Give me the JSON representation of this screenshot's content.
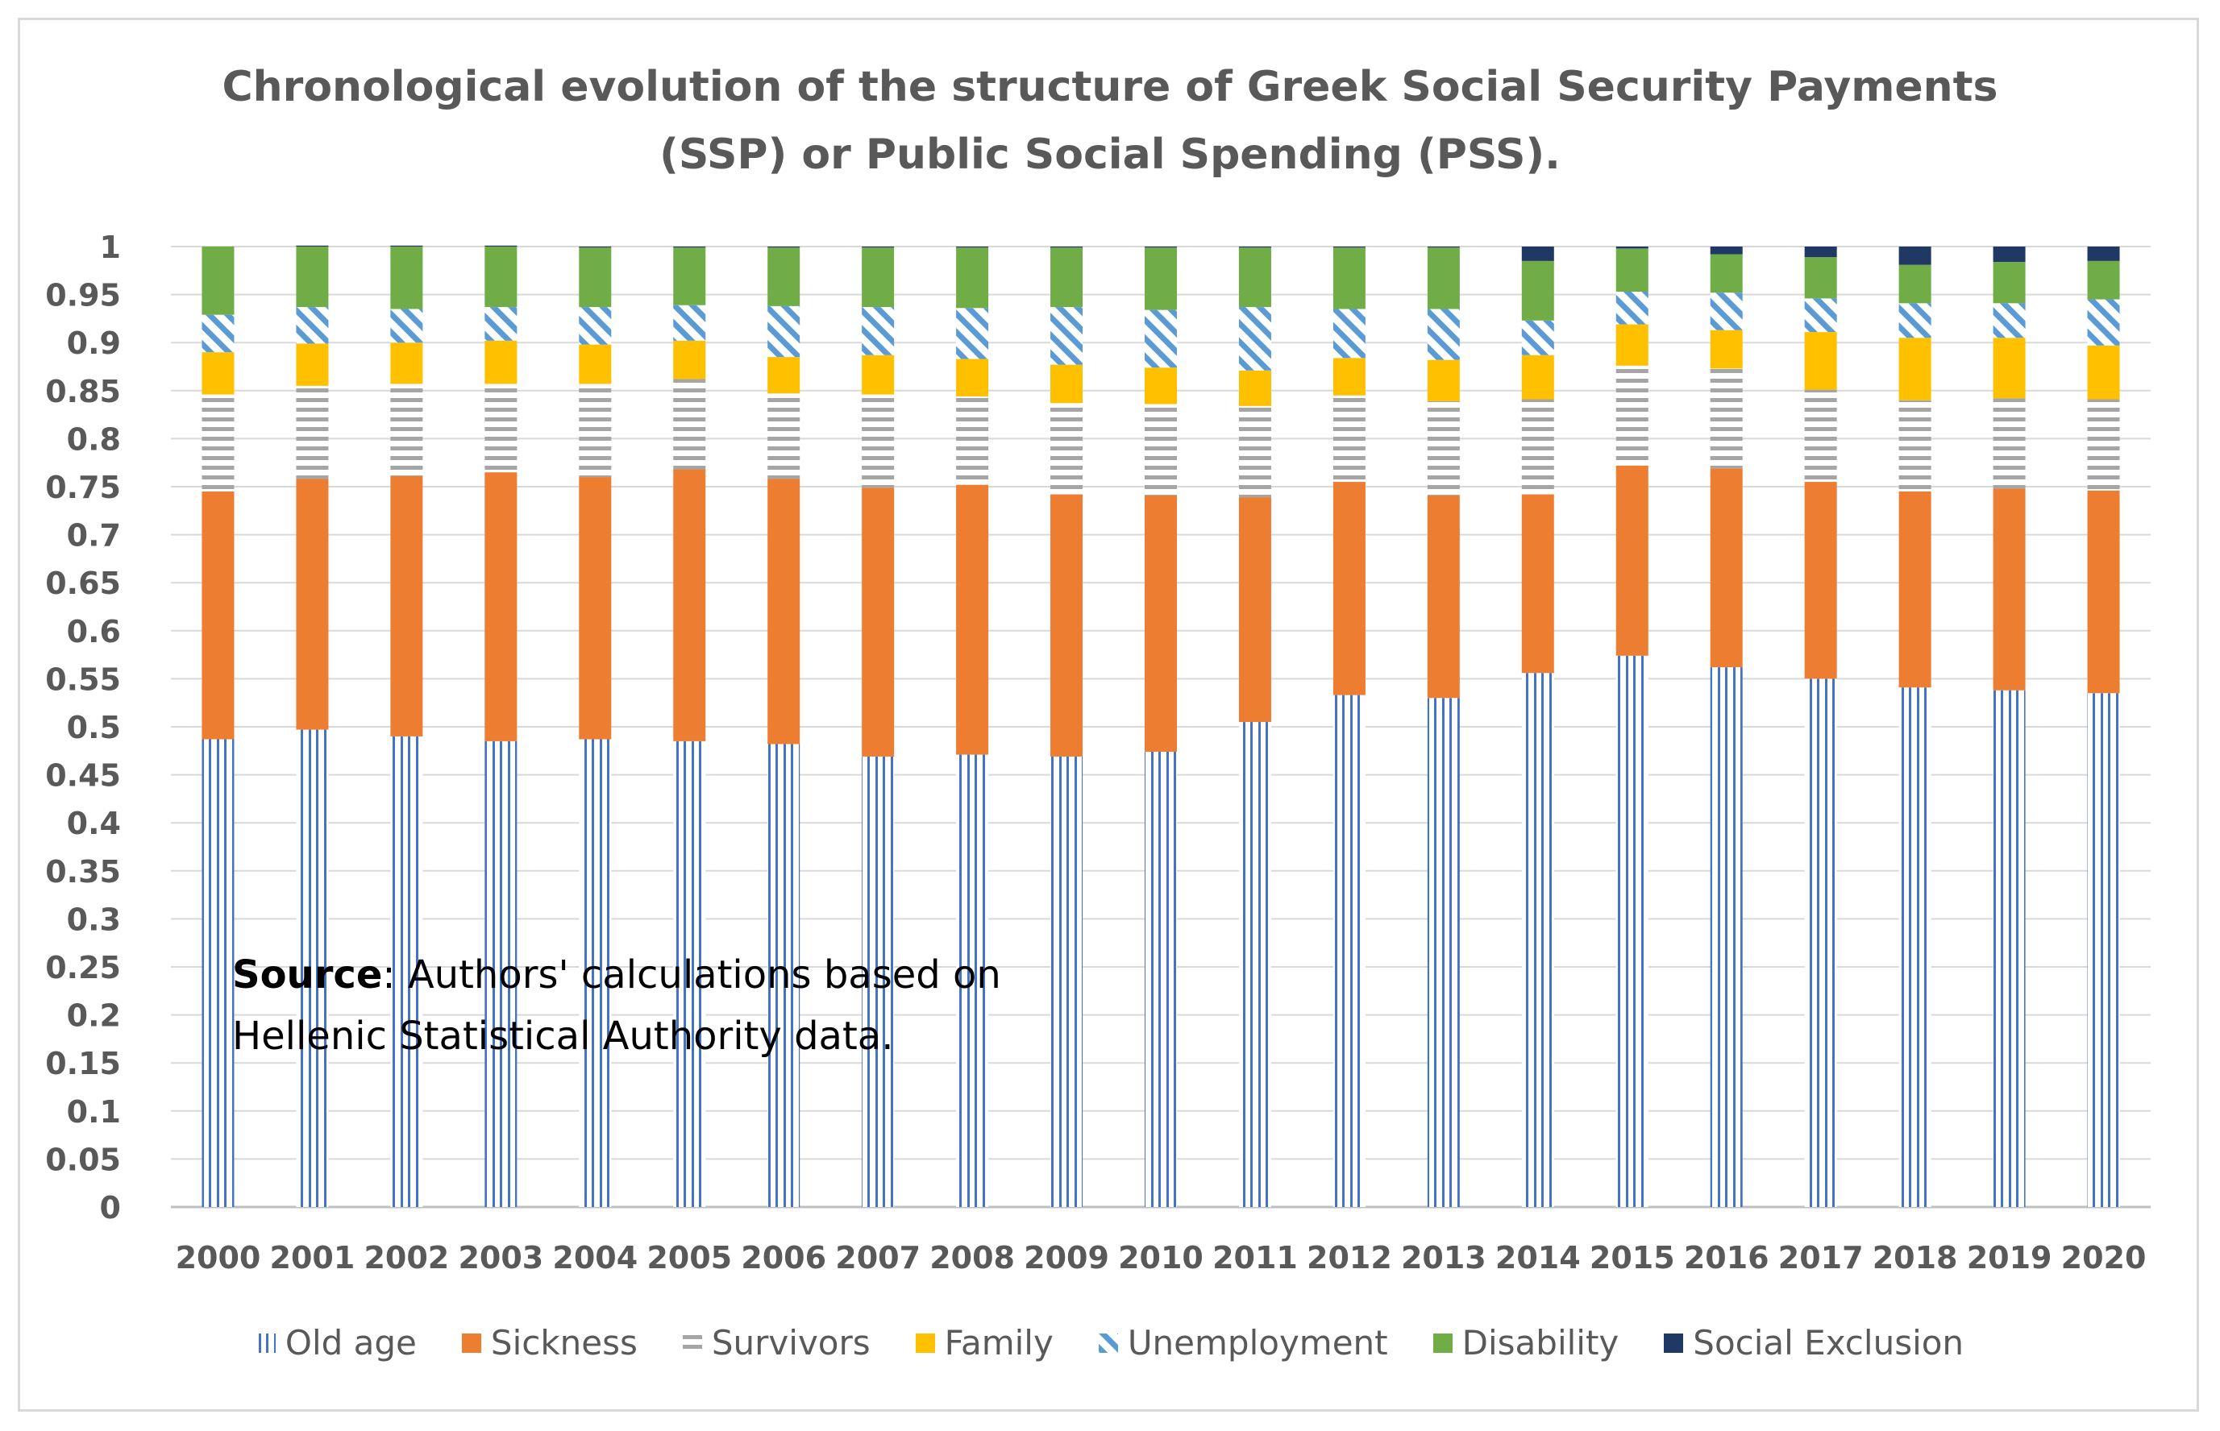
{
  "chart_data": {
    "type": "bar",
    "stacked": true,
    "title": "Chronological  evolution of the structure of Greek Social Security Payments (SSP) or Public Social Spending (PSS).",
    "title_lines": [
      "Chronological  evolution of the structure of Greek Social Security Payments",
      "(SSP) or Public Social Spending (PSS)."
    ],
    "source_label": "Source",
    "source_text": ": Authors' calculations based on",
    "source_text_line2": "Hellenic Statistical Authority data.",
    "xlabel": "",
    "ylabel": "",
    "ylim": [
      0,
      1
    ],
    "yticks": [
      "0",
      "0.05",
      "0.1",
      "0.15",
      "0.2",
      "0.25",
      "0.3",
      "0.35",
      "0.4",
      "0.45",
      "0.5",
      "0.55",
      "0.6",
      "0.65",
      "0.7",
      "0.75",
      "0.8",
      "0.85",
      "0.9",
      "0.95",
      "1"
    ],
    "grid": true,
    "legend_position": "bottom",
    "categories": [
      "2000",
      "2001",
      "2002",
      "2003",
      "2004",
      "2005",
      "2006",
      "2007",
      "2008",
      "2009",
      "2010",
      "2011",
      "2012",
      "2013",
      "2014",
      "2015",
      "2016",
      "2017",
      "2018",
      "2019",
      "2020"
    ],
    "series": [
      {
        "name": "Old age",
        "color": "#4472c4",
        "pattern": "vertical-lines",
        "values": [
          0.487,
          0.497,
          0.49,
          0.485,
          0.487,
          0.485,
          0.482,
          0.469,
          0.471,
          0.469,
          0.474,
          0.505,
          0.533,
          0.53,
          0.556,
          0.574,
          0.562,
          0.55,
          0.541,
          0.538,
          0.535
        ]
      },
      {
        "name": "Sickness",
        "color": "#ed7d31",
        "pattern": "solid",
        "values": [
          0.258,
          0.261,
          0.271,
          0.28,
          0.273,
          0.283,
          0.276,
          0.28,
          0.281,
          0.273,
          0.267,
          0.234,
          0.222,
          0.211,
          0.186,
          0.198,
          0.207,
          0.205,
          0.204,
          0.21,
          0.211
        ]
      },
      {
        "name": "Survivors",
        "color": "#a5a5a5",
        "pattern": "horizontal-lines",
        "values": [
          0.101,
          0.097,
          0.096,
          0.092,
          0.097,
          0.094,
          0.089,
          0.097,
          0.092,
          0.095,
          0.095,
          0.095,
          0.09,
          0.098,
          0.099,
          0.104,
          0.104,
          0.096,
          0.095,
          0.094,
          0.095
        ]
      },
      {
        "name": "Family",
        "color": "#ffc000",
        "pattern": "solid",
        "values": [
          0.044,
          0.044,
          0.043,
          0.045,
          0.041,
          0.04,
          0.038,
          0.041,
          0.039,
          0.04,
          0.038,
          0.037,
          0.039,
          0.043,
          0.046,
          0.043,
          0.04,
          0.06,
          0.065,
          0.063,
          0.056
        ]
      },
      {
        "name": "Unemployment",
        "color": "#5b9bd5",
        "pattern": "diagonal",
        "values": [
          0.039,
          0.038,
          0.035,
          0.035,
          0.039,
          0.037,
          0.053,
          0.05,
          0.053,
          0.06,
          0.06,
          0.066,
          0.051,
          0.053,
          0.036,
          0.034,
          0.039,
          0.035,
          0.036,
          0.036,
          0.048
        ]
      },
      {
        "name": "Disability",
        "color": "#70ad47",
        "pattern": "solid",
        "values": [
          0.071,
          0.063,
          0.065,
          0.063,
          0.062,
          0.06,
          0.061,
          0.062,
          0.063,
          0.062,
          0.065,
          0.062,
          0.064,
          0.064,
          0.062,
          0.045,
          0.04,
          0.043,
          0.04,
          0.043,
          0.04
        ]
      },
      {
        "name": "Social Exclusion",
        "color": "#203864",
        "pattern": "solid",
        "values": [
          0.0,
          0.001,
          0.001,
          0.001,
          0.001,
          0.001,
          0.001,
          0.001,
          0.001,
          0.001,
          0.001,
          0.001,
          0.001,
          0.001,
          0.015,
          0.002,
          0.008,
          0.011,
          0.019,
          0.016,
          0.015
        ]
      }
    ]
  }
}
